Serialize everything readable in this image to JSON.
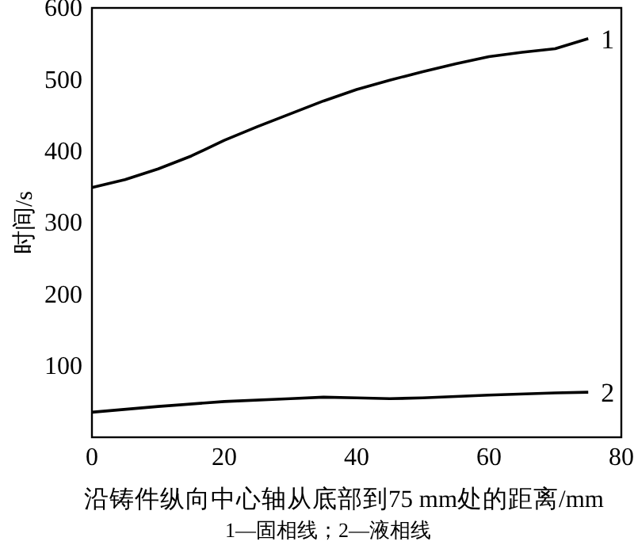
{
  "chart_data": {
    "type": "line",
    "xlabel": "沿铸件纵向中心轴从底部到75 mm处的距离/mm",
    "ylabel": "时间/s",
    "annotations": [
      "1—固相线；2—液相线"
    ],
    "xlim": [
      0,
      80
    ],
    "xticks": [
      0,
      20,
      40,
      60,
      80
    ],
    "ylim": [
      0,
      600
    ],
    "yticks": [
      100,
      200,
      300,
      400,
      500,
      600
    ],
    "line_style": "solid",
    "marker": "none",
    "grid": false,
    "series": [
      {
        "name": "1",
        "color": "#000000",
        "x": [
          0,
          5,
          10,
          15,
          20,
          25,
          30,
          35,
          40,
          45,
          50,
          55,
          60,
          65,
          70,
          75
        ],
        "values": [
          349,
          360,
          375,
          393,
          415,
          434,
          452,
          470,
          486,
          499,
          511,
          522,
          532,
          538,
          543,
          557
        ]
      },
      {
        "name": "2",
        "color": "#000000",
        "x": [
          0,
          10,
          20,
          30,
          35,
          40,
          45,
          50,
          60,
          70,
          75
        ],
        "values": [
          35,
          43,
          50,
          54,
          56,
          55,
          54,
          55,
          59,
          62,
          63
        ]
      }
    ]
  }
}
